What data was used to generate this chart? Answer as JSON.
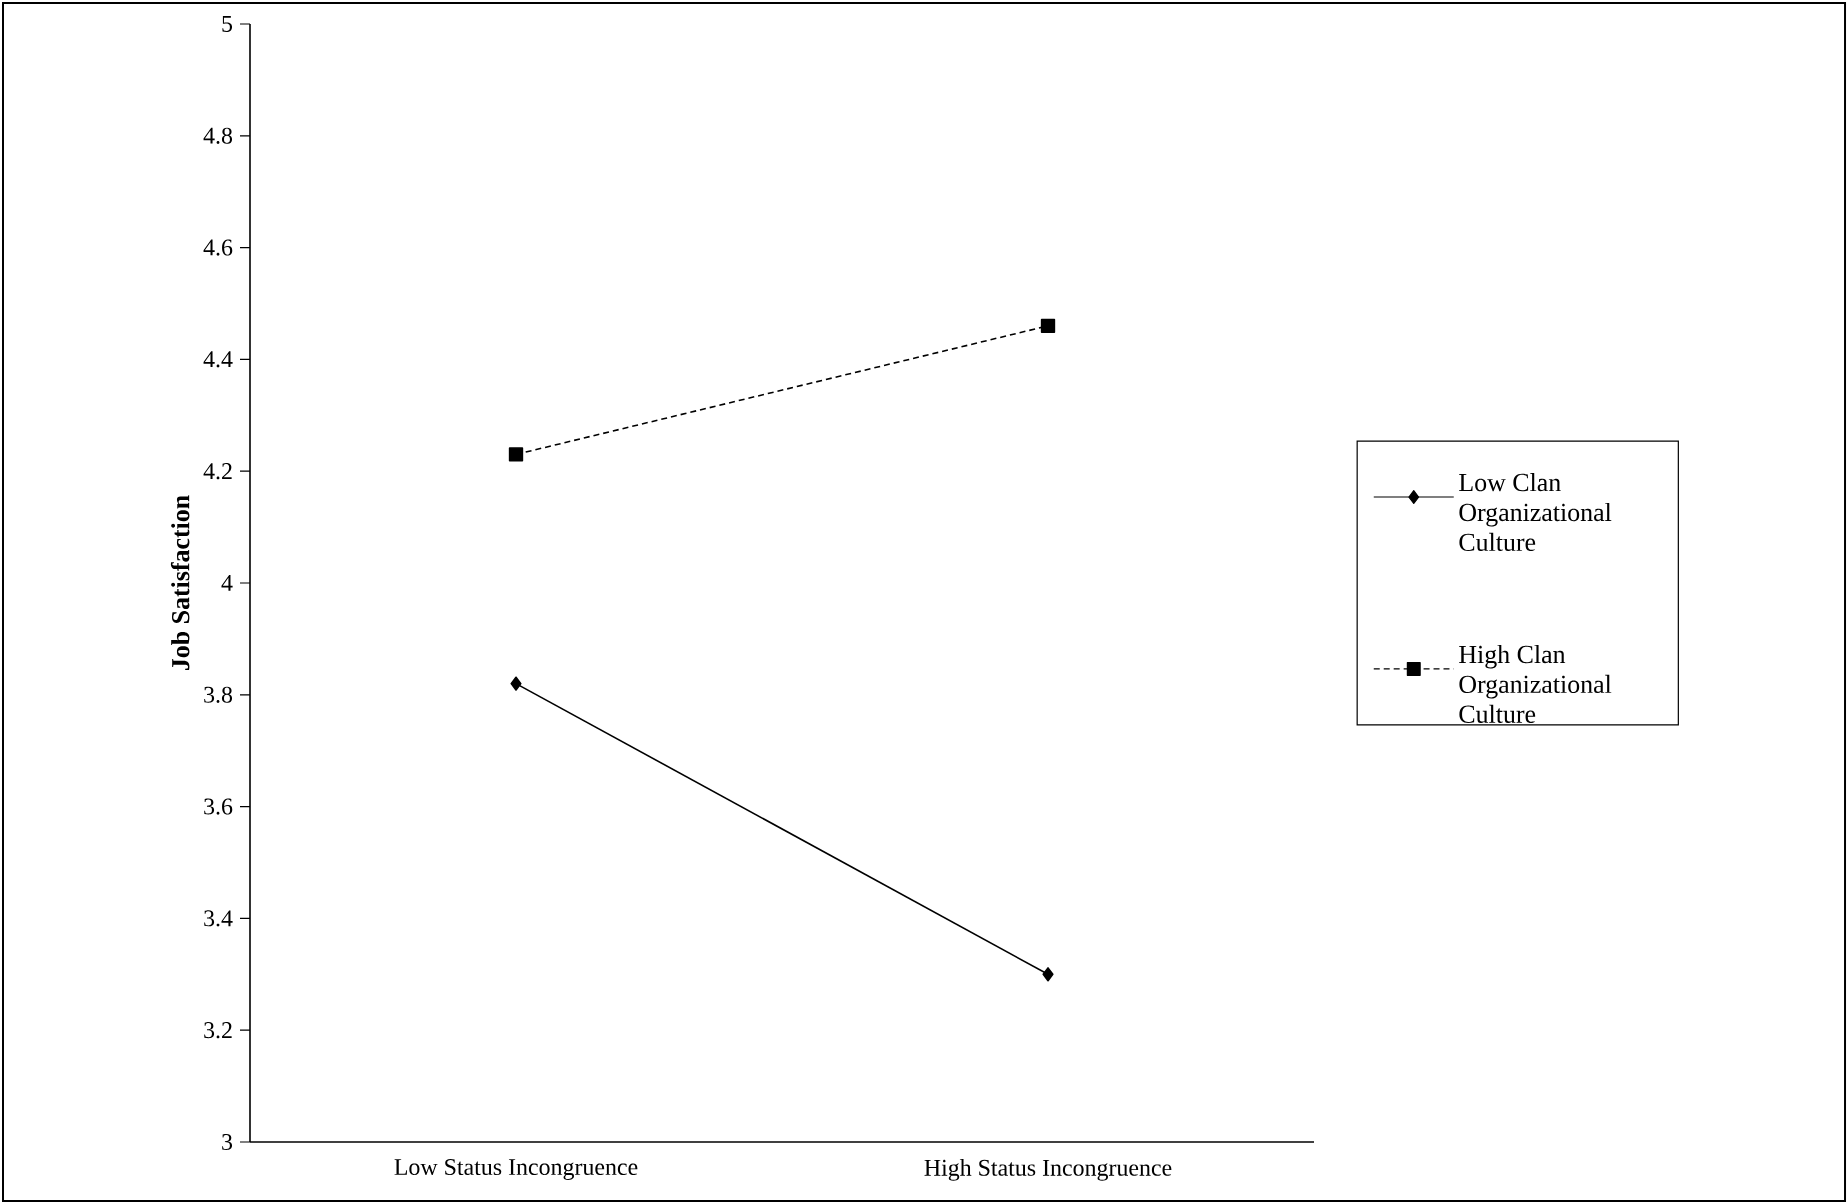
{
  "chart_data": {
    "type": "line",
    "ylabel": "Job Satisfaction",
    "categories": [
      "Low Status Incongruence",
      "High Status Incongruence"
    ],
    "series": [
      {
        "name": "Low Clan Organizational Culture",
        "color": "#000000",
        "values": [
          3.82,
          3.3
        ],
        "marker": "diamond",
        "line_style": "solid"
      },
      {
        "name": "High Clan Organizational Culture",
        "color": "#000000",
        "values": [
          4.23,
          4.46
        ],
        "marker": "square",
        "line_style": "dashed"
      }
    ],
    "ylim": [
      3,
      5
    ],
    "yticks": [
      3,
      3.2,
      3.4,
      3.6,
      3.8,
      4,
      4.2,
      4.4,
      4.6,
      4.8,
      5
    ],
    "grid": false,
    "legend": "right"
  }
}
